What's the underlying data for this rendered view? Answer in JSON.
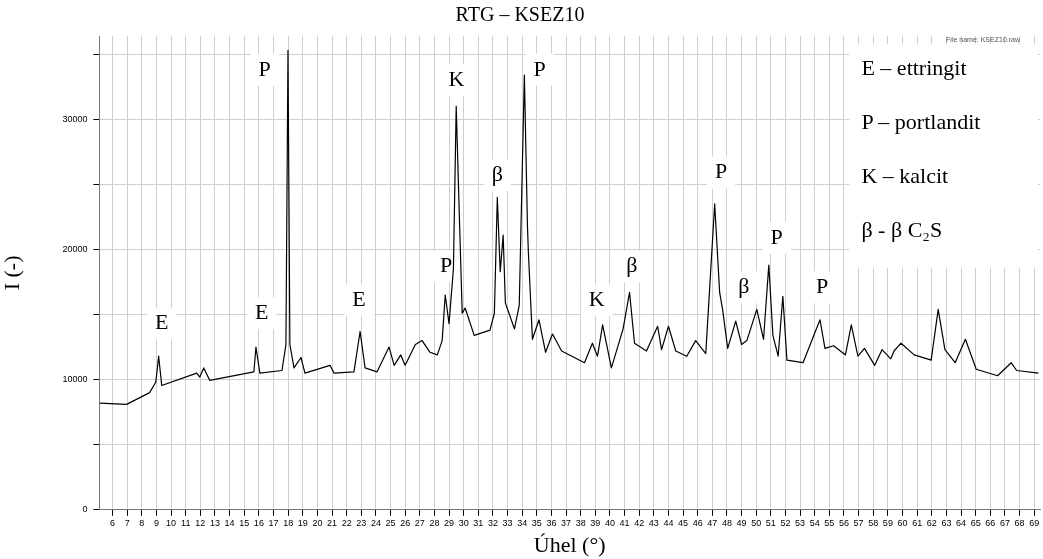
{
  "chart_data": {
    "type": "line",
    "title": "RTG – KSEZ10",
    "xlabel": "Úhel (°)",
    "ylabel": "I (-)",
    "x": [
      5.11,
      6.96,
      8.53,
      8.95,
      9.15,
      9.36,
      11.75,
      11.96,
      12.23,
      12.64,
      15.66,
      15.8,
      16.07,
      17.58,
      17.85,
      17.99,
      18.12,
      18.4,
      18.88,
      19.15,
      20.86,
      21.14,
      22.5,
      22.92,
      23.26,
      24.08,
      24.9,
      25.25,
      25.7,
      26.0,
      26.7,
      27.16,
      27.7,
      28.2,
      28.53,
      28.74,
      29.0,
      29.3,
      29.49,
      29.7,
      29.9,
      30.1,
      30.72,
      31.8,
      32.1,
      32.3,
      32.5,
      32.7,
      32.85,
      33.47,
      33.8,
      34.15,
      34.36,
      34.42,
      34.7,
      35.15,
      35.6,
      36.07,
      36.7,
      38.26,
      38.8,
      39.15,
      39.5,
      40.1,
      40.9,
      41.34,
      41.68,
      42.5,
      43.26,
      43.53,
      44.0,
      44.5,
      45.25,
      45.86,
      46.55,
      47.16,
      47.5,
      47.7,
      48.05,
      48.6,
      49.0,
      49.36,
      50.04,
      50.5,
      50.86,
      51.14,
      51.5,
      51.82,
      52.1,
      53.2,
      54.36,
      54.7,
      55.3,
      56.1,
      56.5,
      56.95,
      57.4,
      58.1,
      58.6,
      59.2,
      59.42,
      59.9,
      60.8,
      61.96,
      62.44,
      62.9,
      63.6,
      64.3,
      65.04,
      66.5,
      67.43,
      67.8,
      69.3
    ],
    "series": [
      {
        "color": "#000000",
        "values": [
          8200,
          8100,
          9000,
          9800,
          11800,
          9550,
          10500,
          10200,
          10900,
          9950,
          10600,
          12500,
          10500,
          10700,
          12700,
          35300,
          12700,
          10900,
          11700,
          10500,
          11100,
          10500,
          10600,
          13700,
          10900,
          10600,
          12500,
          11100,
          11900,
          11100,
          12700,
          13000,
          12100,
          11900,
          13000,
          16500,
          14300,
          18500,
          31000,
          22800,
          15100,
          15500,
          13400,
          13800,
          15100,
          24000,
          18300,
          21100,
          15900,
          13900,
          15700,
          33400,
          21900,
          19900,
          13100,
          14600,
          12100,
          13500,
          12200,
          11300,
          12800,
          11800,
          14200,
          10900,
          13900,
          16700,
          12800,
          12200,
          14100,
          12300,
          14100,
          12200,
          11800,
          13000,
          12000,
          23500,
          16700,
          15400,
          12400,
          14500,
          12700,
          13000,
          15400,
          13100,
          18800,
          13400,
          11800,
          16400,
          11500,
          11300,
          14600,
          12400,
          12600,
          11900,
          14200,
          11800,
          12400,
          11100,
          12300,
          11600,
          12200,
          12800,
          11900,
          11500,
          15400,
          12300,
          11300,
          13100,
          10800,
          10300,
          11300,
          10700,
          10500
        ]
      }
    ],
    "xlim": [
      5.1,
      69.4
    ],
    "xticks": [
      6,
      7,
      8,
      9,
      10,
      11,
      12,
      13,
      14,
      15,
      16,
      17,
      18,
      19,
      20,
      21,
      22,
      23,
      24,
      25,
      26,
      27,
      28,
      29,
      30,
      31,
      32,
      33,
      34,
      35,
      36,
      37,
      38,
      39,
      40,
      41,
      42,
      43,
      44,
      45,
      46,
      47,
      48,
      49,
      50,
      51,
      52,
      53,
      54,
      55,
      56,
      57,
      58,
      59,
      60,
      61,
      62,
      63,
      64,
      65,
      66,
      67,
      68,
      69
    ],
    "ylim": [
      0,
      36400
    ],
    "yticks": [
      0,
      {
        "value": 5000,
        "label": null
      },
      10000,
      {
        "value": 15000,
        "label": null
      },
      20000,
      {
        "value": 25000,
        "label": null
      },
      30000,
      {
        "value": 35000,
        "label": null
      }
    ],
    "grid": true,
    "legend": false,
    "marker": "none",
    "line_style": "solid",
    "annotations": [
      "File name: KSEZ10.raw",
      "E – ettringit",
      "P – portlandit",
      "K – kalcit",
      "β - β C₂S",
      {
        "text": "E",
        "x": 9.36,
        "y": 14300
      },
      {
        "text": "E",
        "x": 16.2,
        "y": 15100
      },
      {
        "text": "P",
        "x": 16.4,
        "y": 33800
      },
      {
        "text": "E",
        "x": 22.85,
        "y": 16100
      },
      {
        "text": "P",
        "x": 28.8,
        "y": 18700
      },
      {
        "text": "K",
        "x": 29.5,
        "y": 33000
      },
      {
        "text": "β",
        "x": 32.3,
        "y": 25700
      },
      {
        "text": "P",
        "x": 35.2,
        "y": 33800
      },
      {
        "text": "K",
        "x": 39.1,
        "y": 16100
      },
      {
        "text": "β",
        "x": 41.5,
        "y": 18700
      },
      {
        "text": "P",
        "x": 47.6,
        "y": 25900
      },
      {
        "text": "β",
        "x": 49.15,
        "y": 17100
      },
      {
        "text": "P",
        "x": 51.4,
        "y": 20900
      },
      {
        "text": "P",
        "x": 54.5,
        "y": 17100
      }
    ]
  }
}
